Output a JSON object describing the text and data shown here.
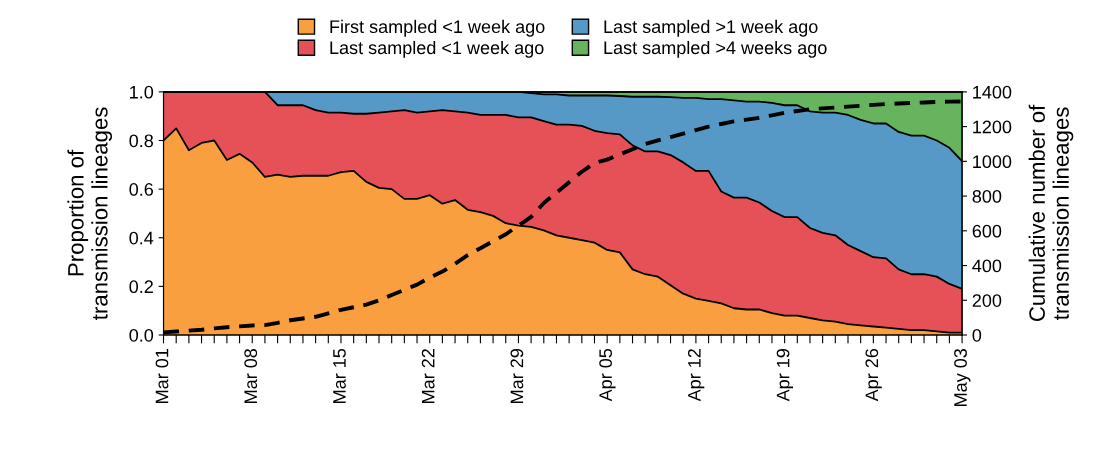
{
  "chart_data": {
    "type": "area",
    "stacked": true,
    "ylabel": "Proportion of\ntransmission lineages",
    "y2label": "Cumulative number of\ntransmission lineages",
    "categories": [
      "Mar 01",
      null,
      null,
      null,
      null,
      null,
      null,
      "Mar 08",
      null,
      null,
      null,
      null,
      null,
      null,
      "Mar 15",
      null,
      null,
      null,
      null,
      null,
      null,
      "Mar 22",
      null,
      null,
      null,
      null,
      null,
      null,
      "Mar 29",
      null,
      null,
      null,
      null,
      null,
      null,
      "Apr 05",
      null,
      null,
      null,
      null,
      null,
      null,
      "Apr 12",
      null,
      null,
      null,
      null,
      null,
      null,
      "Apr 19",
      null,
      null,
      null,
      null,
      null,
      null,
      "Apr 26",
      null,
      null,
      null,
      null,
      null,
      null,
      "May 03"
    ],
    "series": [
      {
        "name": "First sampled <1 week ago",
        "color": "#fa9f3f",
        "values": [
          0.8,
          0.85,
          0.76,
          0.79,
          0.8,
          0.72,
          0.745,
          0.71,
          0.65,
          0.66,
          0.65,
          0.655,
          0.655,
          0.655,
          0.67,
          0.675,
          0.63,
          0.605,
          0.6,
          0.56,
          0.56,
          0.575,
          0.54,
          0.555,
          0.515,
          0.505,
          0.49,
          0.46,
          0.45,
          0.445,
          0.43,
          0.41,
          0.4,
          0.39,
          0.38,
          0.35,
          0.34,
          0.27,
          0.25,
          0.24,
          0.205,
          0.17,
          0.15,
          0.14,
          0.13,
          0.11,
          0.105,
          0.105,
          0.09,
          0.08,
          0.08,
          0.07,
          0.06,
          0.055,
          0.045,
          0.04,
          0.035,
          0.03,
          0.025,
          0.02,
          0.02,
          0.015,
          0.01,
          0.01
        ]
      },
      {
        "name": "Last sampled <1 week ago",
        "color": "#e65157",
        "values": [
          0.2,
          0.15,
          0.24,
          0.21,
          0.2,
          0.28,
          0.255,
          0.29,
          0.35,
          0.285,
          0.295,
          0.29,
          0.27,
          0.26,
          0.245,
          0.235,
          0.28,
          0.31,
          0.32,
          0.365,
          0.355,
          0.345,
          0.385,
          0.365,
          0.4,
          0.4,
          0.415,
          0.445,
          0.445,
          0.45,
          0.45,
          0.455,
          0.465,
          0.47,
          0.46,
          0.48,
          0.485,
          0.51,
          0.505,
          0.515,
          0.535,
          0.54,
          0.525,
          0.535,
          0.46,
          0.455,
          0.46,
          0.44,
          0.42,
          0.405,
          0.405,
          0.37,
          0.36,
          0.355,
          0.325,
          0.305,
          0.285,
          0.285,
          0.245,
          0.23,
          0.23,
          0.225,
          0.2,
          0.18
        ]
      },
      {
        "name": "Last sampled >1 week ago",
        "color": "#5799c6",
        "values": [
          0,
          0,
          0,
          0,
          0,
          0,
          0,
          0,
          0,
          0.055,
          0.055,
          0.055,
          0.075,
          0.085,
          0.085,
          0.09,
          0.09,
          0.085,
          0.08,
          0.075,
          0.085,
          0.08,
          0.075,
          0.08,
          0.085,
          0.095,
          0.095,
          0.095,
          0.105,
          0.1,
          0.11,
          0.125,
          0.12,
          0.125,
          0.145,
          0.155,
          0.158,
          0.2,
          0.225,
          0.225,
          0.238,
          0.265,
          0.3,
          0.295,
          0.38,
          0.4,
          0.395,
          0.415,
          0.445,
          0.46,
          0.46,
          0.48,
          0.495,
          0.505,
          0.535,
          0.54,
          0.55,
          0.555,
          0.565,
          0.57,
          0.57,
          0.56,
          0.56,
          0.525
        ]
      },
      {
        "name": "Last sampled >4 weeks ago",
        "color": "#66b55e",
        "values": [
          0,
          0,
          0,
          0,
          0,
          0,
          0,
          0,
          0,
          0,
          0,
          0,
          0,
          0,
          0,
          0,
          0,
          0,
          0,
          0,
          0,
          0,
          0,
          0,
          0,
          0,
          0,
          0,
          0,
          0.005,
          0.01,
          0.01,
          0.015,
          0.015,
          0.015,
          0.015,
          0.017,
          0.02,
          0.02,
          0.02,
          0.022,
          0.025,
          0.025,
          0.03,
          0.03,
          0.035,
          0.04,
          0.04,
          0.045,
          0.055,
          0.055,
          0.08,
          0.085,
          0.085,
          0.095,
          0.115,
          0.13,
          0.13,
          0.165,
          0.18,
          0.18,
          0.2,
          0.23,
          0.285
        ]
      },
      {
        "type": "line",
        "axis": "y2",
        "color": "#000000",
        "line_style": "dashed",
        "values": [
          15,
          20,
          25,
          30,
          38,
          45,
          50,
          55,
          57,
          70,
          85,
          95,
          105,
          125,
          145,
          160,
          175,
          200,
          230,
          260,
          290,
          330,
          365,
          410,
          460,
          500,
          540,
          580,
          630,
          680,
          760,
          820,
          880,
          940,
          990,
          1010,
          1040,
          1070,
          1100,
          1120,
          1140,
          1160,
          1180,
          1200,
          1215,
          1230,
          1240,
          1250,
          1265,
          1280,
          1290,
          1300,
          1305,
          1310,
          1315,
          1320,
          1325,
          1330,
          1333,
          1336,
          1339,
          1342,
          1344,
          1345
        ]
      }
    ],
    "ylim": [
      0,
      1
    ],
    "yticks": [
      {
        "value": 0,
        "label": "0.0"
      },
      {
        "value": 0.2,
        "label": "0.2"
      },
      {
        "value": 0.4,
        "label": "0.4"
      },
      {
        "value": 0.6,
        "label": "0.6"
      },
      {
        "value": 0.8,
        "label": "0.8"
      },
      {
        "value": 1,
        "label": "1.0"
      }
    ],
    "y2lim": [
      0,
      1400
    ],
    "y2ticks": [
      0,
      200,
      400,
      600,
      800,
      1000,
      1200,
      1400
    ],
    "legend": "top",
    "grid": false
  }
}
